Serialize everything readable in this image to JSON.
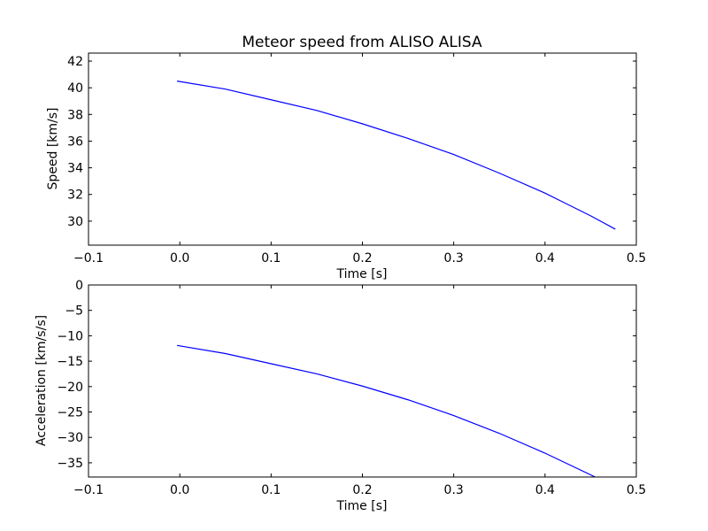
{
  "chart_data": [
    {
      "type": "line",
      "title": "Meteor speed from  ALISO ALISA",
      "xlabel": "Time [s]",
      "ylabel": "Speed [km/s]",
      "xlim": [
        -0.1,
        0.5
      ],
      "ylim": [
        28.2,
        42.6
      ],
      "xticks": [
        -0.1,
        0.0,
        0.1,
        0.2,
        0.3,
        0.4,
        0.5
      ],
      "xtick_labels": [
        "−0.1",
        "0.0",
        "0.1",
        "0.2",
        "0.3",
        "0.4",
        "0.5"
      ],
      "yticks": [
        30,
        32,
        34,
        36,
        38,
        40,
        42
      ],
      "ytick_labels": [
        "30",
        "32",
        "34",
        "36",
        "38",
        "40",
        "42"
      ],
      "grid": false,
      "color": "#0000ff",
      "series": [
        {
          "x": [
            -0.003,
            0.05,
            0.1,
            0.15,
            0.2,
            0.25,
            0.3,
            0.35,
            0.4,
            0.45,
            0.477
          ],
          "y": [
            40.5,
            39.9,
            39.1,
            38.3,
            37.3,
            36.2,
            35.0,
            33.6,
            32.1,
            30.4,
            29.4
          ]
        }
      ]
    },
    {
      "type": "line",
      "title": "",
      "xlabel": "Time [s]",
      "ylabel": "Acceleration [km/s/s]",
      "xlim": [
        -0.1,
        0.5
      ],
      "ylim": [
        -37.8,
        0
      ],
      "xticks": [
        -0.1,
        0.0,
        0.1,
        0.2,
        0.3,
        0.4,
        0.5
      ],
      "xtick_labels": [
        "−0.1",
        "0.0",
        "0.1",
        "0.2",
        "0.3",
        "0.4",
        "0.5"
      ],
      "yticks": [
        0,
        -5,
        -10,
        -15,
        -20,
        -25,
        -30,
        -35
      ],
      "ytick_labels": [
        "0",
        "−5",
        "−10",
        "−15",
        "−20",
        "−25",
        "−30",
        "−35"
      ],
      "grid": false,
      "color": "#0000ff",
      "series": [
        {
          "x": [
            -0.003,
            0.05,
            0.1,
            0.15,
            0.2,
            0.25,
            0.3,
            0.35,
            0.4,
            0.455
          ],
          "y": [
            -11.9,
            -13.5,
            -15.5,
            -17.5,
            -19.9,
            -22.6,
            -25.7,
            -29.2,
            -33.1,
            -37.8
          ]
        }
      ]
    }
  ]
}
